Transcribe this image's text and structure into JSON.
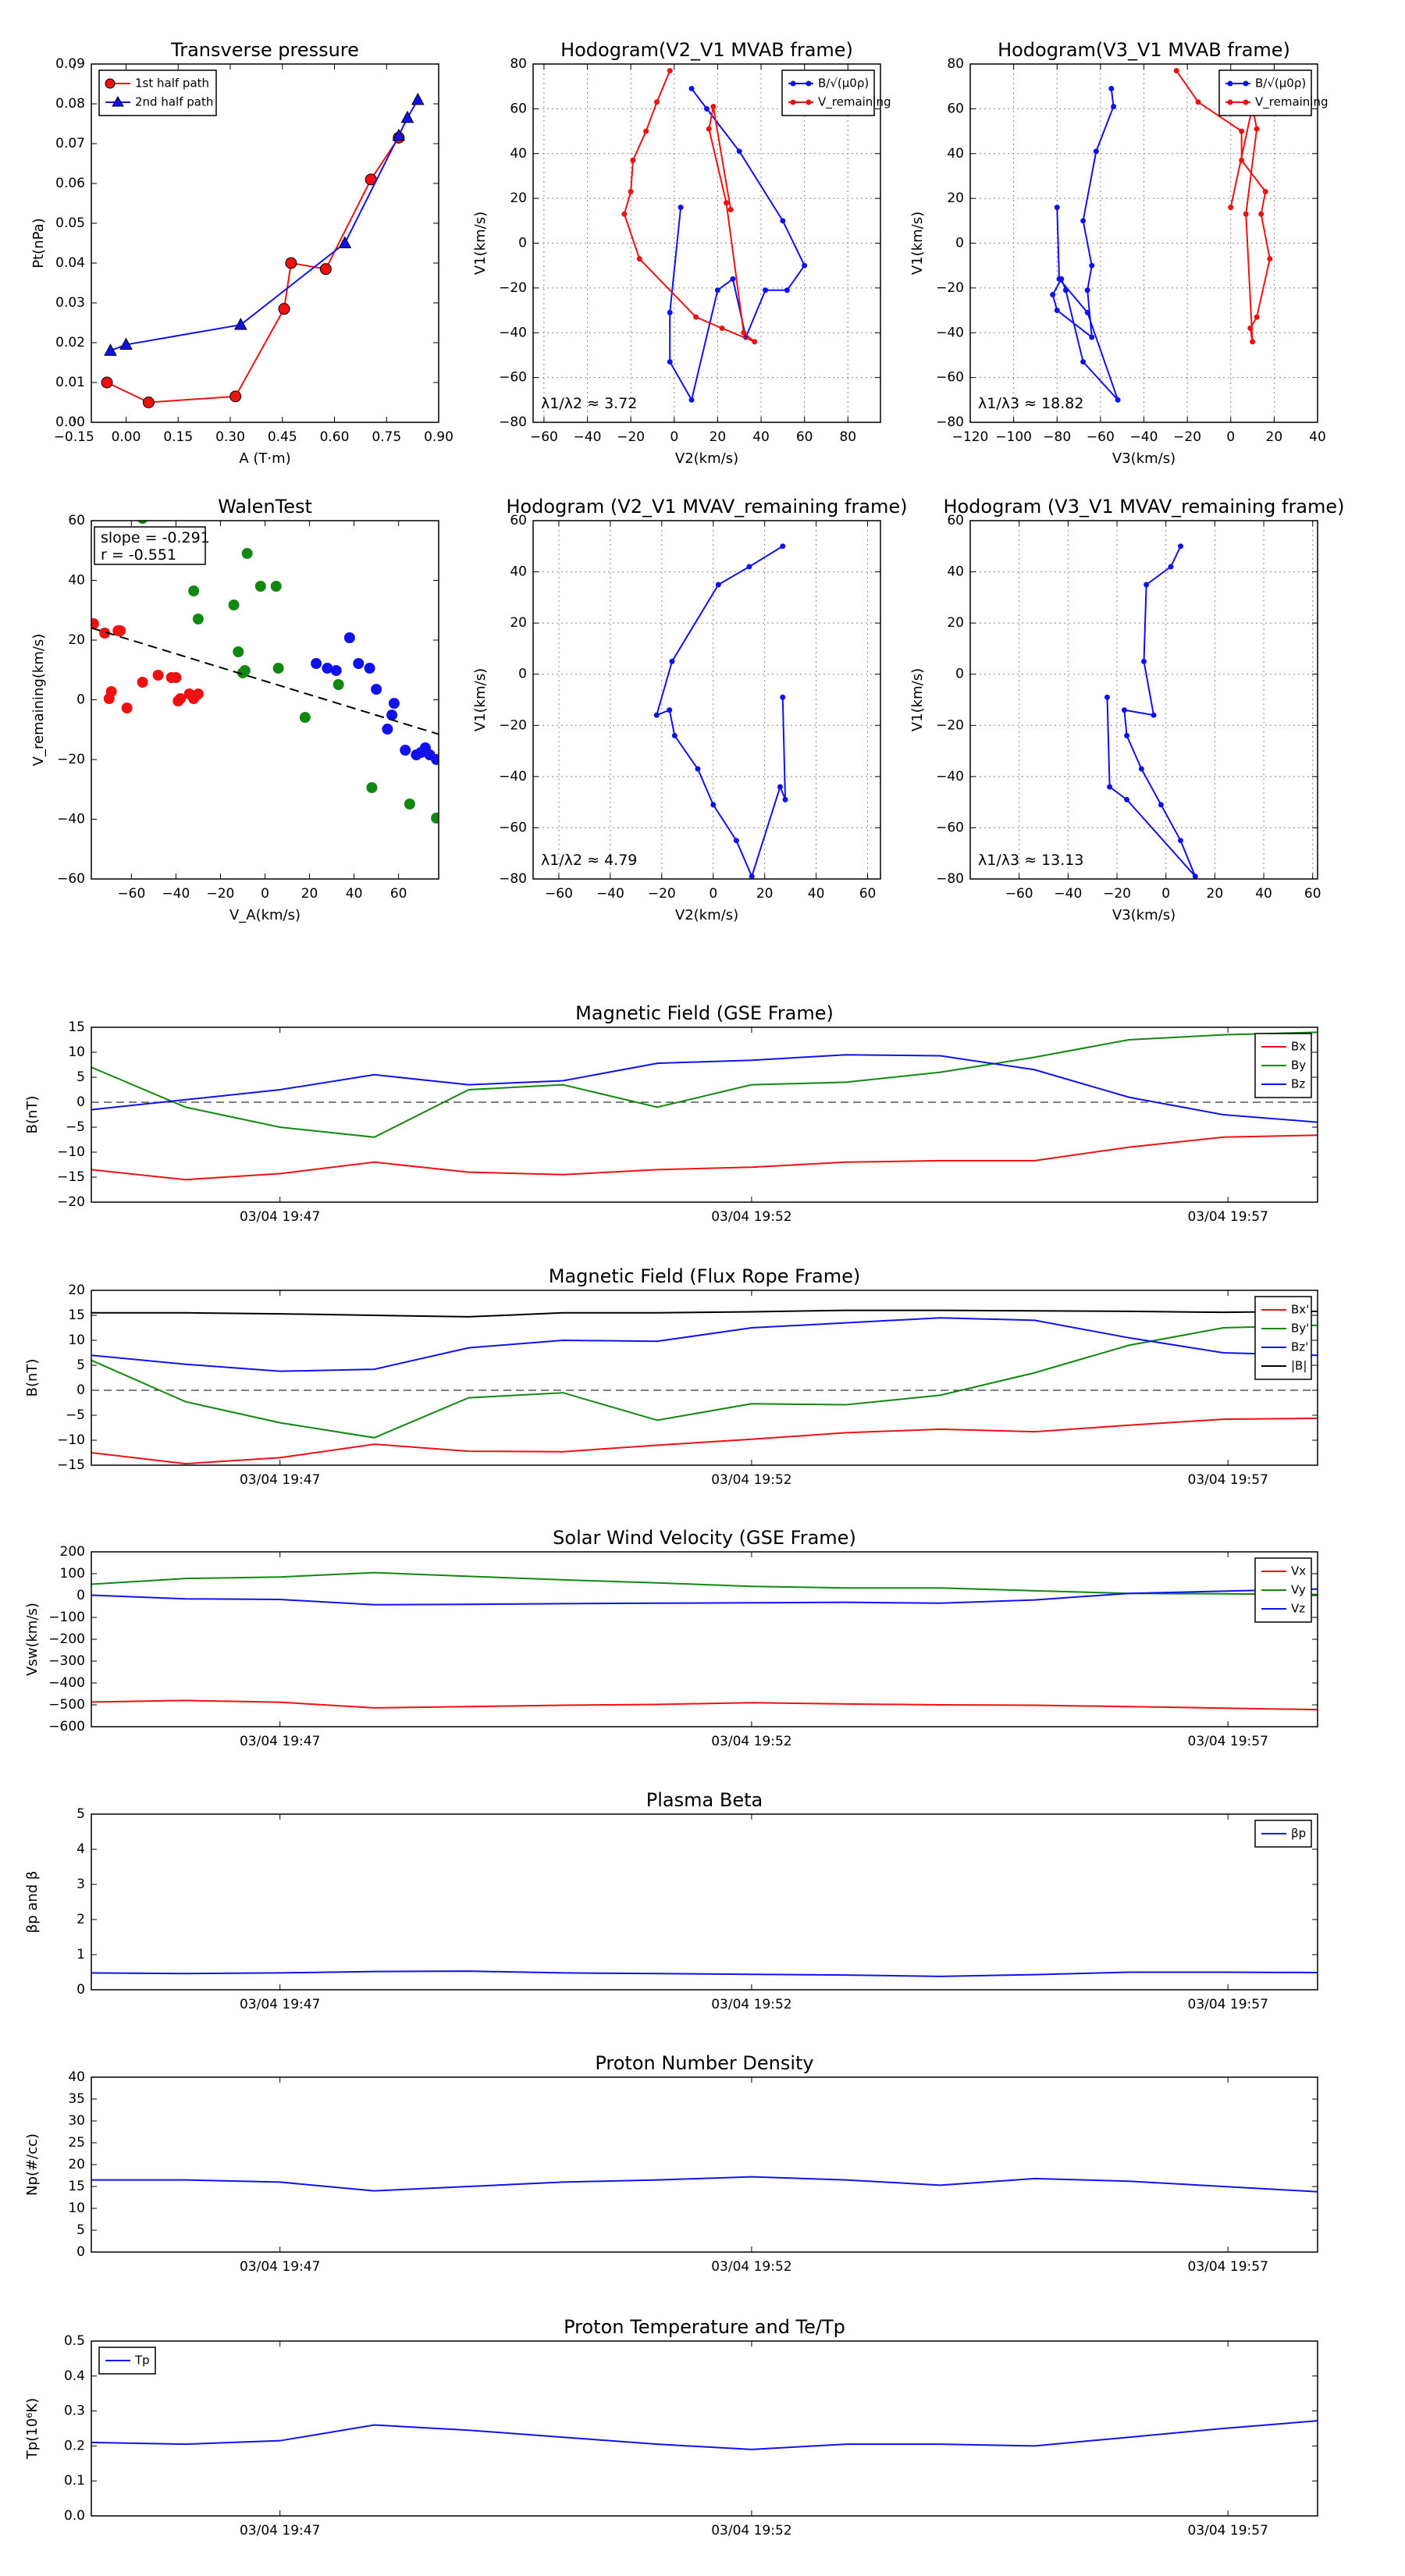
{
  "colors": {
    "red": "#ee1111",
    "green": "#118811",
    "blue": "#1111ee",
    "black": "#000000"
  },
  "chart_data": [
    {
      "type": "scatter",
      "title": "Transverse pressure",
      "xlabel": "A (T·m)",
      "ylabel": "Pt(nPa)",
      "xlim": [
        -0.1,
        0.9
      ],
      "ylim": [
        0,
        0.09
      ],
      "xticks": [
        "−0.15",
        "0.00",
        "0.15",
        "0.30",
        "0.45",
        "0.60",
        "0.75",
        "0.90"
      ],
      "yticks": [
        "0.00",
        "0.01",
        "0.02",
        "0.03",
        "0.04",
        "0.05",
        "0.06",
        "0.07",
        "0.08",
        "0.09"
      ],
      "legend_position": "top-left",
      "series": [
        {
          "name": "1st half path",
          "color": "red",
          "marker": "circle",
          "line": true,
          "x": [
            -0.055,
            0.065,
            0.315,
            0.455,
            0.475,
            0.575,
            0.705,
            0.785
          ],
          "y": [
            0.01,
            0.005,
            0.0065,
            0.0285,
            0.04,
            0.0385,
            0.061,
            0.0715
          ]
        },
        {
          "name": "2nd half path",
          "color": "blue",
          "marker": "triangle",
          "line": true,
          "x": [
            -0.045,
            0.0,
            0.33,
            0.63,
            0.785,
            0.81,
            0.84
          ],
          "y": [
            0.018,
            0.0195,
            0.0245,
            0.045,
            0.072,
            0.0765,
            0.081
          ]
        }
      ],
      "grid": false
    },
    {
      "type": "line",
      "title": "Hodogram(V2_V1 MVAB frame)",
      "xlabel": "V2(km/s)",
      "ylabel": "V1(km/s)",
      "xlim": [
        -65,
        95
      ],
      "ylim": [
        -80,
        80
      ],
      "xticks": [
        "−60",
        "−40",
        "−20",
        "0",
        "20",
        "40",
        "60",
        "80"
      ],
      "yticks": [
        "−80",
        "−60",
        "−40",
        "−20",
        "0",
        "20",
        "40",
        "60",
        "80"
      ],
      "annotation": "λ1/λ2 ≈ 3.72",
      "legend_position": "top-right",
      "grid": true,
      "series": [
        {
          "name": "B/√(μ0ρ)",
          "color": "blue",
          "x": [
            8,
            15,
            30,
            50,
            60,
            52,
            42,
            33,
            27,
            20,
            8,
            -2,
            -2,
            3
          ],
          "y": [
            69,
            60,
            41,
            10,
            -10,
            -21,
            -21,
            -42,
            -16,
            -21,
            -70,
            -53,
            -31,
            16
          ]
        },
        {
          "name": "V_remaining",
          "color": "red",
          "x": [
            -2,
            -8,
            -13,
            -19,
            -20,
            -23,
            -16,
            10,
            22,
            37,
            32,
            24,
            16,
            18,
            26
          ],
          "y": [
            77,
            63,
            50,
            37,
            23,
            13,
            -7,
            -33,
            -38,
            -44,
            -40,
            18,
            51,
            61,
            15
          ]
        }
      ]
    },
    {
      "type": "line",
      "title": "Hodogram(V3_V1 MVAB frame)",
      "xlabel": "V3(km/s)",
      "ylabel": "V1(km/s)",
      "xlim": [
        -120,
        40
      ],
      "ylim": [
        -80,
        80
      ],
      "xticks": [
        "−120",
        "−100",
        "−80",
        "−60",
        "−40",
        "−20",
        "0",
        "20",
        "40"
      ],
      "yticks": [
        "−80",
        "−60",
        "−40",
        "−20",
        "0",
        "20",
        "40",
        "60",
        "80"
      ],
      "annotation": "λ1/λ3 ≈ 18.82",
      "legend_position": "top-right",
      "grid": true,
      "series": [
        {
          "name": "B/√(μ0ρ)",
          "color": "blue",
          "x": [
            -55,
            -54,
            -62,
            -68,
            -64,
            -66,
            -64,
            -80,
            -82,
            -78,
            -76,
            -68,
            -52,
            -66,
            -79,
            -80
          ],
          "y": [
            69,
            61,
            41,
            10,
            -10,
            -21,
            -42,
            -30,
            -23,
            -16,
            -21,
            -53,
            -70,
            -31,
            -16,
            16
          ]
        },
        {
          "name": "V_remaining",
          "color": "red",
          "x": [
            -25,
            -15,
            5,
            5,
            16,
            14,
            18,
            12,
            9,
            10,
            7,
            12,
            10,
            0
          ],
          "y": [
            77,
            63,
            50,
            37,
            23,
            13,
            -7,
            -33,
            -38,
            -44,
            13,
            51,
            61,
            16
          ]
        }
      ]
    },
    {
      "type": "scatter",
      "title": "WalenTest",
      "xlabel": "V_A(km/s)",
      "ylabel": "V_remaining(km/s)",
      "xlim": [
        -78,
        78
      ],
      "ylim": [
        -75,
        78
      ],
      "xticks": [
        "−60",
        "−40",
        "−20",
        "0",
        "20",
        "40",
        "60"
      ],
      "yticks": [
        "−60",
        "−40",
        "−20",
        "0",
        "20",
        "40",
        "60"
      ],
      "annotation_lines": [
        "slope = -0.291",
        "r = -0.551"
      ],
      "fit": {
        "slope": -0.291,
        "intercept": 9.5
      },
      "grid": false,
      "series": [
        {
          "color": "red",
          "x": [
            -77,
            -72,
            -66,
            -70,
            -69,
            -62,
            -55,
            -48,
            -42,
            -38,
            -34,
            -30,
            -32,
            -40,
            -39,
            -65
          ],
          "y": [
            34,
            30,
            31,
            2,
            5,
            -2,
            9,
            12,
            11,
            2,
            4,
            4,
            2,
            11,
            1,
            31
          ]
        },
        {
          "color": "green",
          "x": [
            -55,
            -30,
            -32,
            -14,
            -12,
            -8,
            6,
            5,
            -2,
            18,
            33,
            48,
            65,
            77,
            -10,
            -9
          ],
          "y": [
            79,
            36,
            48,
            42,
            22,
            64,
            15,
            50,
            50,
            -6,
            8,
            -36,
            -43,
            -49,
            13,
            14
          ]
        },
        {
          "color": "blue",
          "x": [
            23,
            28,
            32,
            42,
            38,
            47,
            50,
            55,
            58,
            57,
            63,
            68,
            72,
            77,
            74,
            70
          ],
          "y": [
            17,
            15,
            14,
            17,
            28,
            15,
            6,
            -11,
            0,
            -5,
            -20,
            -22,
            -19,
            -24,
            -22,
            -21
          ]
        }
      ]
    },
    {
      "type": "line",
      "title": "Hodogram (V2_V1 MVAV_remaining frame)",
      "xlabel": "V2(km/s)",
      "ylabel": "V1(km/s)",
      "xlim": [
        -70,
        65
      ],
      "ylim": [
        -80,
        60
      ],
      "xticks": [
        "−60",
        "−40",
        "−20",
        "0",
        "20",
        "40",
        "60"
      ],
      "yticks": [
        "−80",
        "−60",
        "−40",
        "−20",
        "0",
        "20",
        "40",
        "60"
      ],
      "annotation": "λ1/λ2 ≈ 4.79",
      "grid": true,
      "series": [
        {
          "color": "blue",
          "x": [
            27,
            14,
            2,
            -16,
            -22,
            -17,
            -15,
            -6,
            0,
            9,
            15,
            26,
            28,
            27
          ],
          "y": [
            50,
            42,
            35,
            5,
            -16,
            -14,
            -24,
            -37,
            -51,
            -65,
            -79,
            -44,
            -49,
            -9
          ]
        }
      ]
    },
    {
      "type": "line",
      "title": "Hodogram (V3_V1 MVAV_remaining frame)",
      "xlabel": "V3(km/s)",
      "ylabel": "V1(km/s)",
      "xlim": [
        -80,
        62
      ],
      "ylim": [
        -80,
        60
      ],
      "xticks": [
        "−60",
        "−40",
        "−20",
        "0",
        "20",
        "40",
        "60"
      ],
      "yticks": [
        "−80",
        "−60",
        "−40",
        "−20",
        "0",
        "20",
        "40",
        "60"
      ],
      "annotation": "λ1/λ3 ≈ 13.13",
      "grid": true,
      "series": [
        {
          "color": "blue",
          "x": [
            6,
            2,
            -8,
            -9,
            -5,
            -17,
            -16,
            -10,
            -2,
            6,
            12,
            -16,
            -23,
            -24
          ],
          "y": [
            50,
            42,
            35,
            5,
            -16,
            -14,
            -24,
            -37,
            -51,
            -65,
            -79,
            -49,
            -44,
            -9
          ]
        }
      ]
    },
    {
      "type": "line",
      "title": "Magnetic Field (GSE Frame)",
      "xlabel": "",
      "ylabel": "B(nT)",
      "ylim": [
        -20,
        15
      ],
      "yticks": [
        "−20",
        "−15",
        "−10",
        "−5",
        "0",
        "5",
        "10",
        "15"
      ],
      "x_ticks": [
        "03/04 19:47",
        "03/04 19:52",
        "03/04 19:57"
      ],
      "legend_position": "top-right",
      "zero_line": true,
      "series": [
        {
          "name": "Bx",
          "color": "red",
          "values": [
            -13.5,
            -15.5,
            -14.3,
            -12.0,
            -14.0,
            -14.5,
            -13.5,
            -13.0,
            -12.0,
            -11.7,
            -11.7,
            -9.0,
            -7.0,
            -6.6
          ]
        },
        {
          "name": "By",
          "color": "green",
          "values": [
            7.0,
            -1.0,
            -5.0,
            -7.0,
            2.5,
            3.5,
            -1.0,
            3.5,
            4.0,
            6.0,
            9.0,
            12.5,
            13.5,
            14.0
          ]
        },
        {
          "name": "Bz",
          "color": "blue",
          "values": [
            -1.5,
            0.5,
            2.5,
            5.5,
            3.5,
            4.3,
            7.8,
            8.4,
            9.5,
            9.3,
            6.5,
            1.0,
            -2.5,
            -4.0
          ]
        }
      ]
    },
    {
      "type": "line",
      "title": "Magnetic Field (Flux Rope Frame)",
      "xlabel": "",
      "ylabel": "B(nT)",
      "ylim": [
        -15,
        20
      ],
      "yticks": [
        "−15",
        "−10",
        "−5",
        "0",
        "5",
        "10",
        "15",
        "20"
      ],
      "x_ticks": [
        "03/04 19:47",
        "03/04 19:52",
        "03/04 19:57"
      ],
      "legend_position": "top-right",
      "zero_line": true,
      "series": [
        {
          "name": "Bx'",
          "color": "red",
          "values": [
            -12.5,
            -14.7,
            -13.5,
            -10.8,
            -12.2,
            -12.3,
            -11.0,
            -9.8,
            -8.5,
            -7.8,
            -8.3,
            -7.0,
            -5.8,
            -5.6
          ]
        },
        {
          "name": "By'",
          "color": "green",
          "values": [
            6.0,
            -2.3,
            -6.5,
            -9.5,
            -1.5,
            -0.5,
            -6.0,
            -2.7,
            -2.9,
            -1.0,
            3.5,
            9.0,
            12.5,
            13.0
          ]
        },
        {
          "name": "Bz'",
          "color": "blue",
          "values": [
            7.0,
            5.2,
            3.8,
            4.2,
            8.5,
            10.0,
            9.8,
            12.5,
            13.5,
            14.5,
            14.0,
            10.5,
            7.5,
            7.0
          ]
        },
        {
          "name": "|B|",
          "color": "black",
          "values": [
            15.5,
            15.5,
            15.3,
            15.0,
            14.7,
            15.5,
            15.5,
            15.7,
            16.0,
            16.0,
            15.9,
            15.8,
            15.6,
            15.8
          ]
        }
      ]
    },
    {
      "type": "line",
      "title": "Solar Wind Velocity (GSE Frame)",
      "xlabel": "",
      "ylabel": "Vsw(km/s)",
      "ylim": [
        -600,
        200
      ],
      "yticks": [
        "−600",
        "−500",
        "−400",
        "−300",
        "−200",
        "−100",
        "0",
        "100",
        "200"
      ],
      "x_ticks": [
        "03/04 19:47",
        "03/04 19:52",
        "03/04 19:57"
      ],
      "legend_position": "top-right",
      "series": [
        {
          "name": "Vx",
          "color": "red",
          "values": [
            -487,
            -480,
            -488,
            -514,
            -508,
            -502,
            -498,
            -490,
            -496,
            -500,
            -502,
            -508,
            -515,
            -522
          ]
        },
        {
          "name": "Vy",
          "color": "green",
          "values": [
            52,
            78,
            85,
            105,
            88,
            72,
            58,
            42,
            35,
            35,
            22,
            10,
            8,
            5
          ]
        },
        {
          "name": "Vz",
          "color": "blue",
          "values": [
            2,
            -15,
            -18,
            -42,
            -40,
            -37,
            -35,
            -33,
            -31,
            -35,
            -20,
            10,
            20,
            30
          ]
        }
      ]
    },
    {
      "type": "line",
      "title": "Plasma Beta",
      "xlabel": "",
      "ylabel": "βp and β",
      "ylim": [
        0,
        5
      ],
      "yticks": [
        "0",
        "1",
        "2",
        "3",
        "4",
        "5"
      ],
      "x_ticks": [
        "03/04 19:47",
        "03/04 19:52",
        "03/04 19:57"
      ],
      "legend_position": "top-right",
      "series": [
        {
          "name": "βp",
          "color": "blue",
          "values": [
            0.48,
            0.46,
            0.48,
            0.52,
            0.53,
            0.48,
            0.46,
            0.44,
            0.42,
            0.38,
            0.43,
            0.5,
            0.5,
            0.49
          ]
        }
      ]
    },
    {
      "type": "line",
      "title": "Proton Number Density",
      "xlabel": "",
      "ylabel": "Np(#/cc)",
      "ylim": [
        0,
        40
      ],
      "yticks": [
        "0",
        "5",
        "10",
        "15",
        "20",
        "25",
        "30",
        "35",
        "40"
      ],
      "x_ticks": [
        "03/04 19:47",
        "03/04 19:52",
        "03/04 19:57"
      ],
      "series": [
        {
          "color": "blue",
          "values": [
            16.5,
            16.5,
            16.0,
            14.0,
            15.0,
            16.0,
            16.5,
            17.2,
            16.5,
            15.3,
            16.8,
            16.2,
            15.0,
            13.8
          ]
        }
      ]
    },
    {
      "type": "line",
      "title": "Proton Temperature and Te/Tp",
      "xlabel": "",
      "ylabel": "Tp(10⁶K)",
      "ylim": [
        0,
        0.5
      ],
      "yticks": [
        "0.0",
        "0.1",
        "0.2",
        "0.3",
        "0.4",
        "0.5"
      ],
      "x_ticks": [
        "03/04 19:47",
        "03/04 19:52",
        "03/04 19:57"
      ],
      "legend_position": "top-left",
      "series": [
        {
          "name": "Tp",
          "color": "blue",
          "values": [
            0.21,
            0.205,
            0.215,
            0.26,
            0.245,
            0.225,
            0.205,
            0.19,
            0.205,
            0.205,
            0.2,
            0.225,
            0.25,
            0.272
          ]
        }
      ]
    }
  ]
}
